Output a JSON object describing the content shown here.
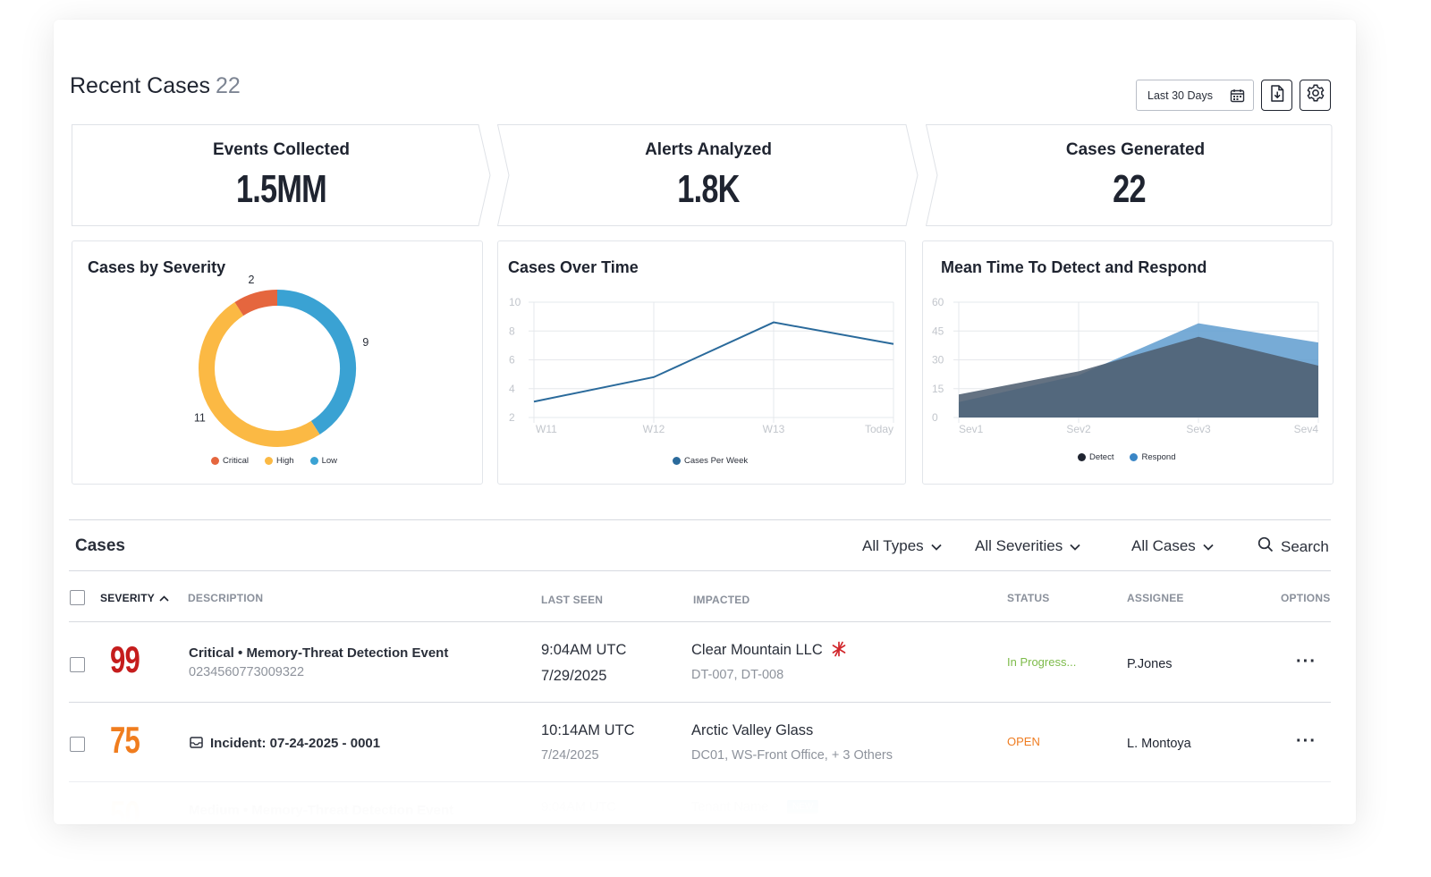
{
  "header": {
    "title": "Recent Cases",
    "count": "22",
    "date_range": "Last 30 Days",
    "export_icon": "file-export-icon",
    "settings_icon": "gear-icon"
  },
  "kpis": [
    {
      "label": "Events Collected",
      "value": "1.5MM"
    },
    {
      "label": "Alerts Analyzed",
      "value": "1.8K"
    },
    {
      "label": "Cases Generated",
      "value": "22"
    }
  ],
  "colors": {
    "critical": "#e5663e",
    "high": "#fbb944",
    "low": "#3aa2d3",
    "line": "#2a6a9b",
    "detect": "#4e5e71",
    "respond": "#5f9ccf",
    "sev_critical_text": "#c51d1d",
    "sev_high_text": "#f07d1e",
    "status_in_progress": "#7dbb4a",
    "status_open": "#ef7d22"
  },
  "charts": {
    "severity": {
      "title": "Cases by Severity",
      "legend": [
        "Critical",
        "High",
        "Low"
      ]
    },
    "over_time": {
      "title": "Cases Over Time",
      "legend": "Cases Per Week"
    },
    "mttd": {
      "title": "Mean Time To Detect and Respond",
      "legend": [
        "Detect",
        "Respond"
      ]
    }
  },
  "chart_data": [
    {
      "type": "pie",
      "title": "Cases by Severity",
      "categories": [
        "Critical",
        "High",
        "Low"
      ],
      "values": [
        2,
        11,
        9
      ],
      "colors": [
        "#e5663e",
        "#fbb944",
        "#3aa2d3"
      ],
      "legend": "bottom"
    },
    {
      "type": "line",
      "title": "Cases Over Time",
      "x": [
        "W11",
        "W12",
        "W13",
        "Today"
      ],
      "y_ticks": [
        10,
        8,
        6,
        4,
        2
      ],
      "ylim": [
        2,
        10
      ],
      "series": [
        {
          "name": "Cases Per Week",
          "values": [
            3.1,
            4.8,
            8.6,
            7.1
          ]
        }
      ],
      "grid": true,
      "legend": "bottom"
    },
    {
      "type": "area",
      "title": "Mean Time To Detect and Respond",
      "x": [
        "Sev1",
        "Sev2",
        "Sev3",
        "Sev4"
      ],
      "y_ticks": [
        60,
        45,
        30,
        15,
        0
      ],
      "ylim": [
        0,
        60
      ],
      "series": [
        {
          "name": "Detect",
          "values": [
            12,
            24,
            42,
            27
          ]
        },
        {
          "name": "Respond",
          "values": [
            8,
            22,
            49,
            39
          ]
        }
      ],
      "grid": true,
      "legend": "bottom"
    }
  ],
  "cases": {
    "title": "Cases",
    "filters": [
      "All Types",
      "All Severities",
      "All Cases"
    ],
    "search_label": "Search",
    "columns": {
      "severity": "SEVERITY",
      "description": "DESCRIPTION",
      "last_seen": "LAST SEEN",
      "impacted": "IMPACTED",
      "status": "STATUS",
      "assignee": "ASSIGNEE",
      "options": "OPTIONS"
    },
    "rows": [
      {
        "severity": "99",
        "title": "Critical • Memory-Threat Detection Event",
        "subtitle": "0234560773009322",
        "time": "9:04AM UTC",
        "date": "7/29/2025",
        "impacted": "Clear Mountain LLC",
        "impacted_sub": "DT-007, DT-008",
        "status": "In Progress...",
        "assignee": "P.Jones",
        "options": "···"
      },
      {
        "severity": "75",
        "title": "Incident: 07-24-2025 - 0001",
        "subtitle": "",
        "time": "10:14AM UTC",
        "date": "7/24/2025",
        "impacted": "Arctic Valley Glass",
        "impacted_sub": "DC01, WS-Front Office, + 3 Others",
        "status": "OPEN",
        "assignee": "L. Montoya",
        "options": "···"
      },
      {
        "severity": "50",
        "title": "Medium • Memory-Threat Detection Event",
        "time": "9:04AM UTC",
        "impacted": "Tenant Name",
        "badge": "NEW"
      }
    ]
  }
}
